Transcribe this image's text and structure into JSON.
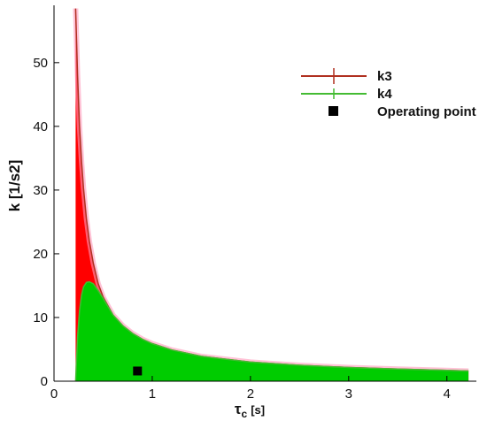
{
  "chart_data": {
    "type": "area",
    "xlabel_main": "τ",
    "xlabel_sub": "c",
    "xlabel_unit": "[s]",
    "ylabel": "k [1/s2]",
    "xlim": [
      0,
      4.3
    ],
    "ylim": [
      0,
      59
    ],
    "x_ticks": [
      "0",
      "1",
      "2",
      "3",
      "4"
    ],
    "y_ticks": [
      "0",
      "10",
      "20",
      "30",
      "40",
      "50"
    ],
    "legend_position": "top-right",
    "series": [
      {
        "name": "k3",
        "color": "#ff0000",
        "line_color": "#b03020",
        "x": [
          0.22,
          0.24,
          0.26,
          0.28,
          0.3,
          0.33,
          0.36,
          0.4,
          0.45,
          0.5,
          0.6,
          0.7,
          0.8,
          0.9,
          1.0,
          1.2,
          1.5,
          2.0,
          2.5,
          3.0,
          3.5,
          4.0,
          4.22
        ],
        "y": [
          58.5,
          48.0,
          40.0,
          34.5,
          30.3,
          25.5,
          22.0,
          18.5,
          15.3,
          13.2,
          10.4,
          8.7,
          7.5,
          6.6,
          5.9,
          4.9,
          3.9,
          3.0,
          2.5,
          2.15,
          1.9,
          1.7,
          1.6
        ]
      },
      {
        "name": "k4",
        "color": "#00cc00",
        "line_color": "#44bb33",
        "x": [
          0.22,
          0.24,
          0.26,
          0.28,
          0.3,
          0.33,
          0.36,
          0.4,
          0.45,
          0.5,
          0.6,
          0.7,
          0.8,
          0.9,
          1.0,
          1.2,
          1.5,
          2.0,
          2.5,
          3.0,
          3.5,
          4.0,
          4.22
        ],
        "y": [
          0,
          7.0,
          11.0,
          13.5,
          14.8,
          15.5,
          15.6,
          15.3,
          14.2,
          13.0,
          10.4,
          8.7,
          7.5,
          6.6,
          5.9,
          4.9,
          3.9,
          3.0,
          2.5,
          2.15,
          1.9,
          1.7,
          1.6
        ]
      }
    ],
    "operating_point": {
      "name": "Operating point",
      "x": 0.85,
      "y": 1.6,
      "color": "#000000"
    }
  }
}
